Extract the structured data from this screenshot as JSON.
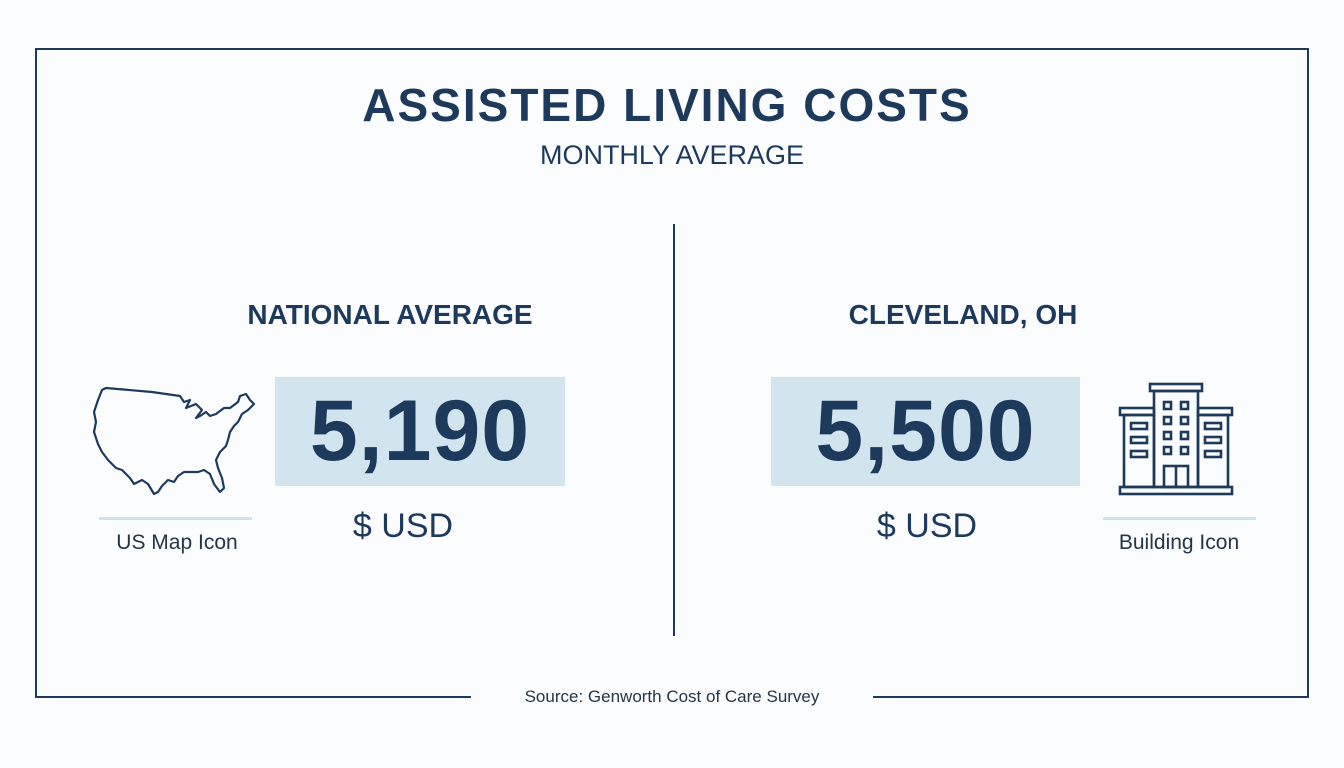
{
  "header": {
    "title": "ASSISTED LIVING COSTS",
    "subtitle": "MONTHLY AVERAGE"
  },
  "national": {
    "heading": "NATIONAL AVERAGE",
    "value": "5,190",
    "unit": "$ USD",
    "icon_label": "US Map Icon",
    "icon": "us-map-icon"
  },
  "cleveland": {
    "heading": "CLEVELAND, OH",
    "value": "5,500",
    "unit": "$ USD",
    "icon_label": "Building Icon",
    "icon": "building-icon"
  },
  "footer": {
    "source": "Source: Genworth Cost of Care Survey"
  },
  "colors": {
    "primary": "#1d3a5c",
    "highlight": "#d2e5ee"
  }
}
